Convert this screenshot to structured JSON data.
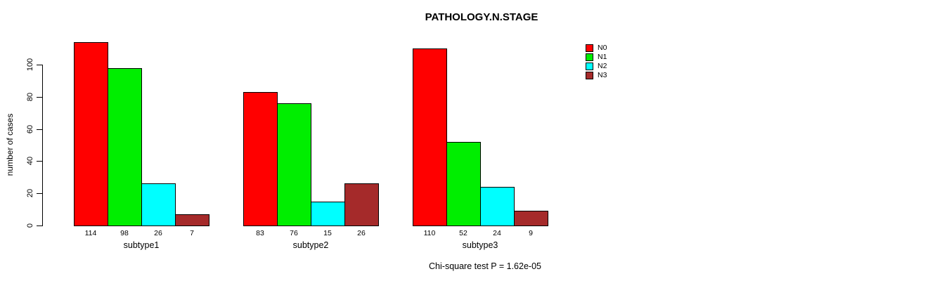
{
  "title": "PATHOLOGY.N.STAGE",
  "ylabel": "number of cases",
  "footer": "Chi-square test P = 1.62e-05",
  "legend": {
    "position": "top-right",
    "entries": [
      {
        "label": "N0",
        "color": "#FF0000"
      },
      {
        "label": "N1",
        "color": "#00EE00"
      },
      {
        "label": "N2",
        "color": "#00FFFF"
      },
      {
        "label": "N3",
        "color": "#A52A2A"
      }
    ]
  },
  "chart_data": {
    "type": "bar",
    "title": "PATHOLOGY.N.STAGE",
    "xlabel": "",
    "ylabel": "number of cases",
    "categories": [
      "subtype1",
      "subtype2",
      "subtype3"
    ],
    "series": [
      {
        "name": "N0",
        "color": "#FF0000",
        "values": [
          114,
          83,
          110
        ]
      },
      {
        "name": "N1",
        "color": "#00EE00",
        "values": [
          98,
          76,
          52
        ]
      },
      {
        "name": "N2",
        "color": "#00FFFF",
        "values": [
          26,
          15,
          24
        ]
      },
      {
        "name": "N3",
        "color": "#A52A2A",
        "values": [
          7,
          26,
          9
        ]
      }
    ],
    "bar_value_labels": [
      [
        114,
        98,
        26,
        7
      ],
      [
        83,
        76,
        15,
        26
      ],
      [
        110,
        52,
        24,
        9
      ]
    ],
    "ylim": [
      0,
      100
    ],
    "yticks": [
      0,
      20,
      40,
      60,
      80,
      100
    ],
    "grid": false,
    "legend_position": "top-right",
    "annotation": "Chi-square test P = 1.62e-05"
  }
}
